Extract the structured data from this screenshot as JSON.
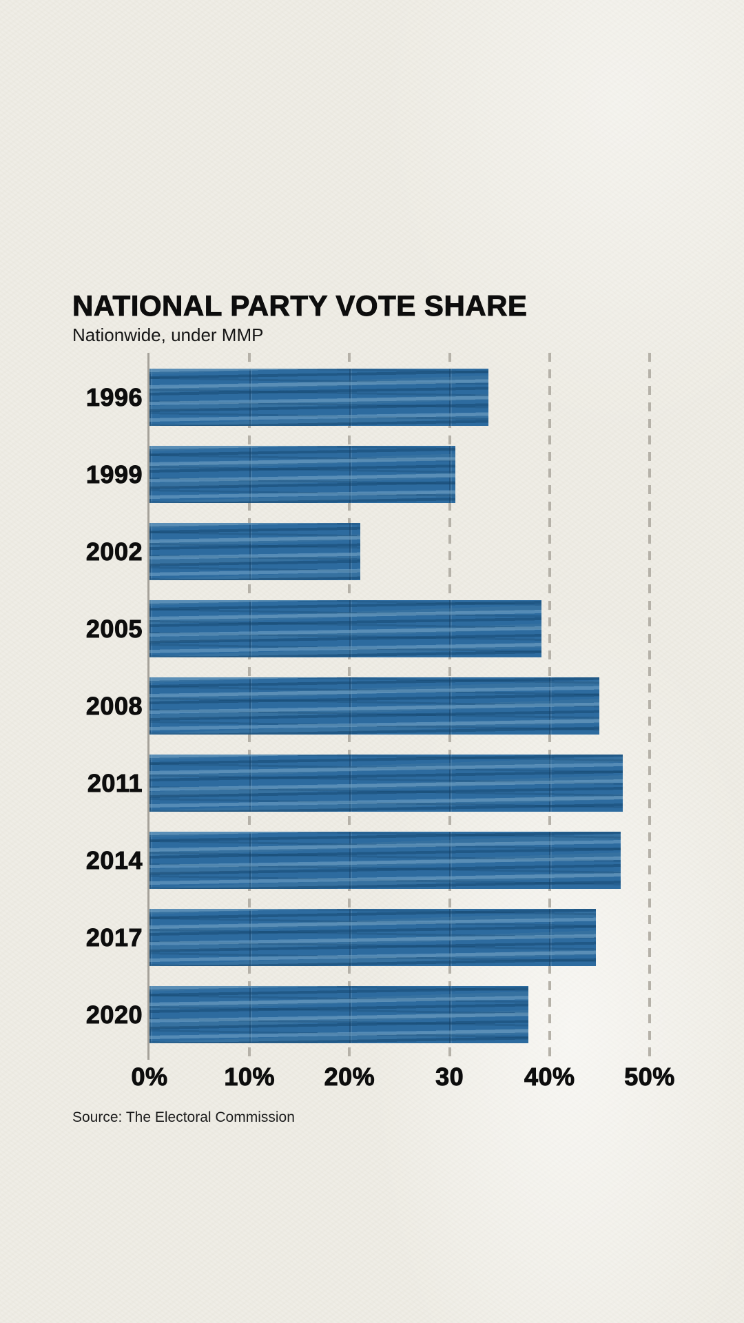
{
  "page": {
    "background_color": "#efede5",
    "text_color": "#0d0d0d"
  },
  "header": {
    "title": "NATIONAL PARTY VOTE SHARE",
    "subtitle": "Nationwide, under MMP"
  },
  "footer": {
    "source": "Source: The Electoral Commission"
  },
  "chart_data": {
    "type": "bar",
    "orientation": "horizontal",
    "title": "NATIONAL PARTY VOTE SHARE",
    "subtitle": "Nationwide, under MMP",
    "categories": [
      "1996",
      "1999",
      "2002",
      "2005",
      "2008",
      "2011",
      "2014",
      "2017",
      "2020"
    ],
    "values": [
      33.9,
      30.6,
      21.1,
      39.2,
      45.0,
      47.3,
      47.1,
      44.6,
      37.9
    ],
    "unit": "%",
    "xlabel": "",
    "ylabel": "",
    "xlim": [
      0,
      50
    ],
    "x_tick_values": [
      0,
      10,
      20,
      30,
      40,
      50
    ],
    "x_tick_labels": [
      "0%",
      "10%",
      "20%",
      "30",
      "40%",
      "50%"
    ],
    "grid": "dashed-vertical",
    "legend": "none",
    "bar_color": "#2d6b9f",
    "gridline_color": "#b5b1a8",
    "axis_line_color": "#a5a199",
    "source": "Source: The Electoral Commission"
  }
}
